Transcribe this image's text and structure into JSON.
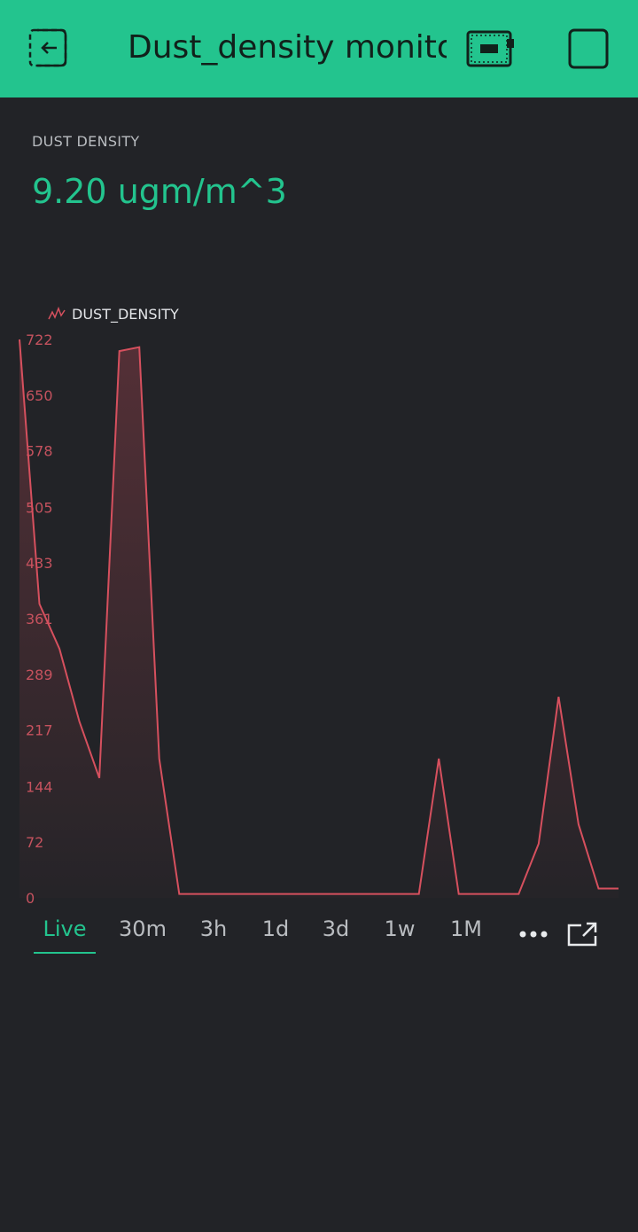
{
  "header": {
    "title": "Dust_density monito"
  },
  "value_widget": {
    "label": "DUST DENSITY",
    "value": "9.20 ugm/m^3"
  },
  "periods": [
    "Live",
    "30m",
    "3h",
    "1d",
    "3d",
    "1w",
    "1M"
  ],
  "active_period": "Live",
  "colors": {
    "accent": "#23c48e",
    "background": "#222327",
    "series": "#d6505e"
  },
  "chart_data": {
    "type": "area",
    "title": "",
    "legend": "DUST_DENSITY",
    "legend_position": "top-left",
    "xlabel": "",
    "ylabel": "",
    "ylim": [
      0,
      722
    ],
    "yticks": [
      0,
      72,
      144,
      217,
      289,
      361,
      433,
      505,
      578,
      650,
      722
    ],
    "grid": false,
    "series": [
      {
        "name": "DUST_DENSITY",
        "x": [
          0,
          1,
          2,
          3,
          4,
          5,
          6,
          7,
          8,
          9,
          10,
          11,
          12,
          13,
          14,
          15,
          16,
          17,
          18,
          19,
          20,
          21,
          22,
          23,
          24,
          25,
          26,
          27,
          28,
          29,
          30
        ],
        "values": [
          722,
          380,
          322,
          228,
          155,
          707,
          712,
          180,
          5,
          5,
          5,
          5,
          5,
          5,
          5,
          5,
          5,
          5,
          5,
          5,
          5,
          180,
          5,
          5,
          5,
          5,
          70,
          260,
          95,
          12,
          12
        ]
      }
    ]
  }
}
